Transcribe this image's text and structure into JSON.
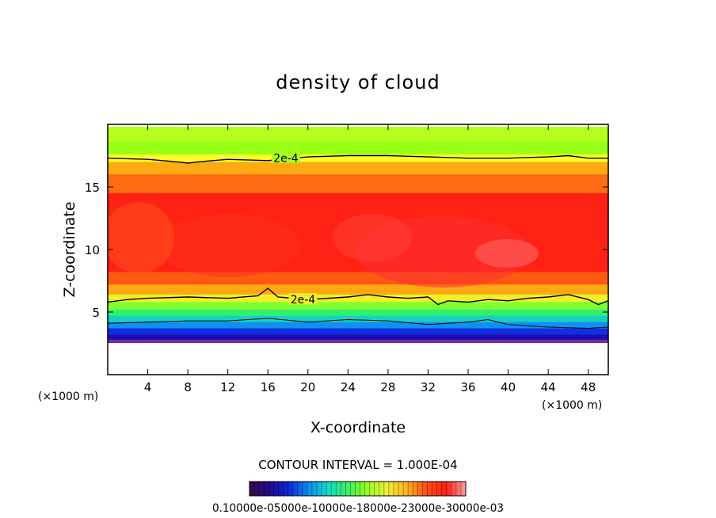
{
  "chart_data": {
    "type": "heatmap",
    "title": "density of cloud",
    "xlabel": "X-coordinate",
    "ylabel": "Z-coordinate",
    "x_unit_left": "(×1000 m)",
    "x_unit_right": "(×1000 m)",
    "xlim": [
      0,
      50
    ],
    "ylim": [
      0,
      20
    ],
    "x_ticks": [
      4,
      8,
      12,
      16,
      20,
      24,
      28,
      32,
      36,
      40,
      44,
      48
    ],
    "y_ticks": [
      5,
      10,
      15
    ],
    "grid": false,
    "contour_interval_text": "CONTOUR INTERVAL = 1.000E-04",
    "colorbar_labels_text": "0.10000e-05000e-10000e-18000e-23000e-30000e-03",
    "contour_labels": [
      {
        "text": "2e-4",
        "x": 17.8,
        "z": 17.3
      },
      {
        "text": "2e-4",
        "x": 19.5,
        "z": 6.0
      }
    ],
    "contours": {
      "upper_2e-4": {
        "x": [
          0,
          4,
          7,
          8,
          9,
          12,
          16,
          20,
          24,
          28,
          32,
          36,
          40,
          44,
          46,
          48,
          50
        ],
        "z": [
          17.3,
          17.2,
          17.0,
          16.9,
          17.0,
          17.2,
          17.1,
          17.4,
          17.5,
          17.5,
          17.4,
          17.3,
          17.3,
          17.4,
          17.5,
          17.3,
          17.3
        ]
      },
      "lower_2e-4": {
        "x": [
          0,
          2,
          4,
          8,
          12,
          15,
          16,
          17,
          20,
          24,
          26,
          28,
          30,
          32,
          33,
          34,
          36,
          38,
          40,
          42,
          44,
          46,
          48,
          49,
          50
        ],
        "z": [
          5.8,
          6.0,
          6.1,
          6.2,
          6.1,
          6.3,
          6.9,
          6.2,
          6.0,
          6.2,
          6.4,
          6.2,
          6.1,
          6.2,
          5.6,
          5.9,
          5.8,
          6.0,
          5.9,
          6.1,
          6.2,
          6.4,
          6.0,
          5.6,
          5.9
        ]
      },
      "base_1e-4": {
        "x": [
          0,
          4,
          8,
          12,
          16,
          20,
          24,
          28,
          32,
          36,
          38,
          40,
          44,
          48,
          50
        ],
        "z": [
          4.1,
          4.2,
          4.3,
          4.3,
          4.5,
          4.2,
          4.4,
          4.3,
          4.0,
          4.2,
          4.4,
          4.0,
          3.8,
          3.7,
          3.8
        ]
      }
    },
    "field_bands": [
      {
        "z0": 19.8,
        "z1": 18.6,
        "color": "#b4ff1e"
      },
      {
        "z0": 18.6,
        "z1": 17.6,
        "color": "#96ff14"
      },
      {
        "z0": 17.6,
        "z1": 17.0,
        "color": "#ffff28"
      },
      {
        "z0": 17.0,
        "z1": 16.0,
        "color": "#ffaa14"
      },
      {
        "z0": 16.0,
        "z1": 14.5,
        "color": "#ff6a14"
      },
      {
        "z0": 14.5,
        "z1": 8.2,
        "color": "#ff2214"
      },
      {
        "z0": 8.2,
        "z1": 7.2,
        "color": "#ff5a14"
      },
      {
        "z0": 7.2,
        "z1": 6.4,
        "color": "#ffa814"
      },
      {
        "z0": 6.4,
        "z1": 5.8,
        "color": "#f0f028"
      },
      {
        "z0": 5.8,
        "z1": 5.2,
        "color": "#80ff30"
      },
      {
        "z0": 5.2,
        "z1": 4.7,
        "color": "#30f070"
      },
      {
        "z0": 4.7,
        "z1": 4.2,
        "color": "#18d0c0"
      },
      {
        "z0": 4.2,
        "z1": 3.7,
        "color": "#1090f0"
      },
      {
        "z0": 3.7,
        "z1": 3.2,
        "color": "#1030e0"
      },
      {
        "z0": 3.2,
        "z1": 2.8,
        "color": "#1e0ab4"
      },
      {
        "z0": 2.8,
        "z1": 2.5,
        "color": "#782896"
      }
    ],
    "colorbar_stops": [
      "#3c0a46",
      "#200a8c",
      "#0a28dc",
      "#0a8cf0",
      "#14dcc8",
      "#3cf064",
      "#96ff1e",
      "#f0f03c",
      "#ffb41e",
      "#ff5014",
      "#ff1e14",
      "#ffa0a0"
    ]
  }
}
